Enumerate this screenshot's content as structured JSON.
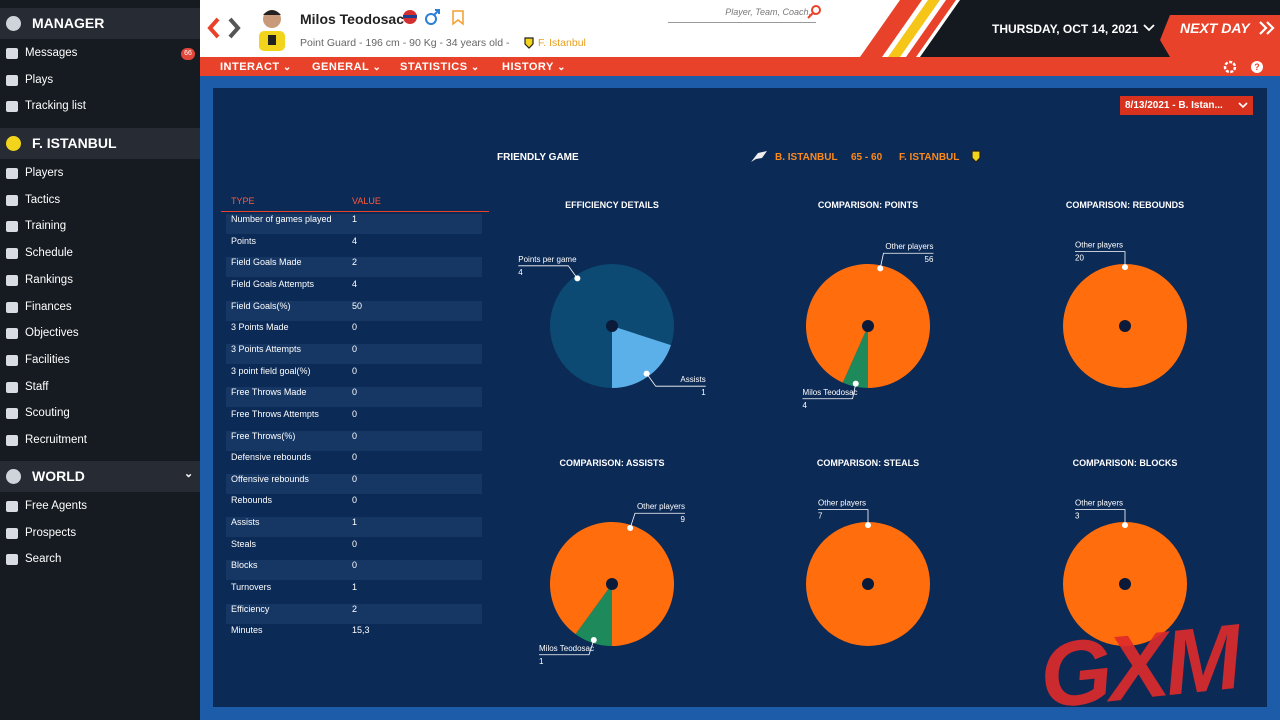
{
  "sidebar": {
    "sections": [
      {
        "title": "MANAGER",
        "items": [
          {
            "label": "Messages",
            "badge": "66"
          },
          {
            "label": "Plays"
          },
          {
            "label": "Tracking list"
          }
        ]
      },
      {
        "title": "F. ISTANBUL",
        "items": [
          {
            "label": "Players"
          },
          {
            "label": "Tactics"
          },
          {
            "label": "Training"
          },
          {
            "label": "Schedule"
          },
          {
            "label": "Rankings"
          },
          {
            "label": "Finances"
          },
          {
            "label": "Objectives"
          },
          {
            "label": "Facilities"
          },
          {
            "label": "Staff"
          },
          {
            "label": "Scouting"
          },
          {
            "label": "Recruitment"
          }
        ]
      },
      {
        "title": "WORLD",
        "items": [
          {
            "label": "Free Agents"
          },
          {
            "label": "Prospects"
          },
          {
            "label": "Search"
          }
        ]
      }
    ]
  },
  "header": {
    "player_name": "Milos Teodosac",
    "player_info": "Point Guard - 196 cm - 90 Kg - 34 years old -",
    "team": "F. Istanbul",
    "search_placeholder": "Player, Team, Coach...",
    "date": "THURSDAY, OCT 14, 2021",
    "next_day": "NEXT DAY"
  },
  "menu": [
    "INTERACT",
    "GENERAL",
    "STATISTICS",
    "HISTORY"
  ],
  "game_select": "8/13/2021 - B. Istan...",
  "match": {
    "type": "FRIENDLY GAME",
    "home": "B. ISTANBUL",
    "score": "65 - 60",
    "away": "F. ISTANBUL"
  },
  "table": {
    "header": [
      "TYPE",
      "VALUE"
    ],
    "rows": [
      [
        "Number of games played",
        "1"
      ],
      [
        "Points",
        "4"
      ],
      [
        "Field Goals Made",
        "2"
      ],
      [
        "Field Goals Attempts",
        "4"
      ],
      [
        "Field Goals(%)",
        "50"
      ],
      [
        "3 Points Made",
        "0"
      ],
      [
        "3 Points Attempts",
        "0"
      ],
      [
        "3 point field goal(%)",
        "0"
      ],
      [
        "Free Throws Made",
        "0"
      ],
      [
        "Free Throws Attempts",
        "0"
      ],
      [
        "Free Throws(%)",
        "0"
      ],
      [
        "Defensive rebounds",
        "0"
      ],
      [
        "Offensive rebounds",
        "0"
      ],
      [
        "Rebounds",
        "0"
      ],
      [
        "Assists",
        "1"
      ],
      [
        "Steals",
        "0"
      ],
      [
        "Blocks",
        "0"
      ],
      [
        "Turnovers",
        "1"
      ],
      [
        "Efficiency",
        "2"
      ],
      [
        "Minutes",
        "15,3"
      ]
    ]
  },
  "chart_data": [
    {
      "type": "pie",
      "title": "EFFICIENCY DETAILS",
      "categories": [
        "Points per game",
        "Assists"
      ],
      "values": [
        4,
        1
      ],
      "colors": [
        "#0c4a73",
        "#5cb0ea"
      ]
    },
    {
      "type": "pie",
      "title": "COMPARISON: POINTS",
      "categories": [
        "Milos Teodosac",
        "Other players"
      ],
      "values": [
        4,
        56
      ],
      "colors": [
        "#1e8a5c",
        "#ff6d0d"
      ]
    },
    {
      "type": "pie",
      "title": "COMPARISON: REBOUNDS",
      "categories": [
        "Other players"
      ],
      "values": [
        20
      ],
      "colors": [
        "#ff6d0d"
      ]
    },
    {
      "type": "pie",
      "title": "COMPARISON: ASSISTS",
      "categories": [
        "Milos Teodosac",
        "Other players"
      ],
      "values": [
        1,
        9
      ],
      "colors": [
        "#1e8a5c",
        "#ff6d0d"
      ]
    },
    {
      "type": "pie",
      "title": "COMPARISON: STEALS",
      "categories": [
        "Other players"
      ],
      "values": [
        7
      ],
      "colors": [
        "#ff6d0d"
      ]
    },
    {
      "type": "pie",
      "title": "COMPARISON: BLOCKS",
      "categories": [
        "Other players"
      ],
      "values": [
        3
      ],
      "colors": [
        "#ff6d0d"
      ]
    }
  ],
  "watermark": "GXM"
}
